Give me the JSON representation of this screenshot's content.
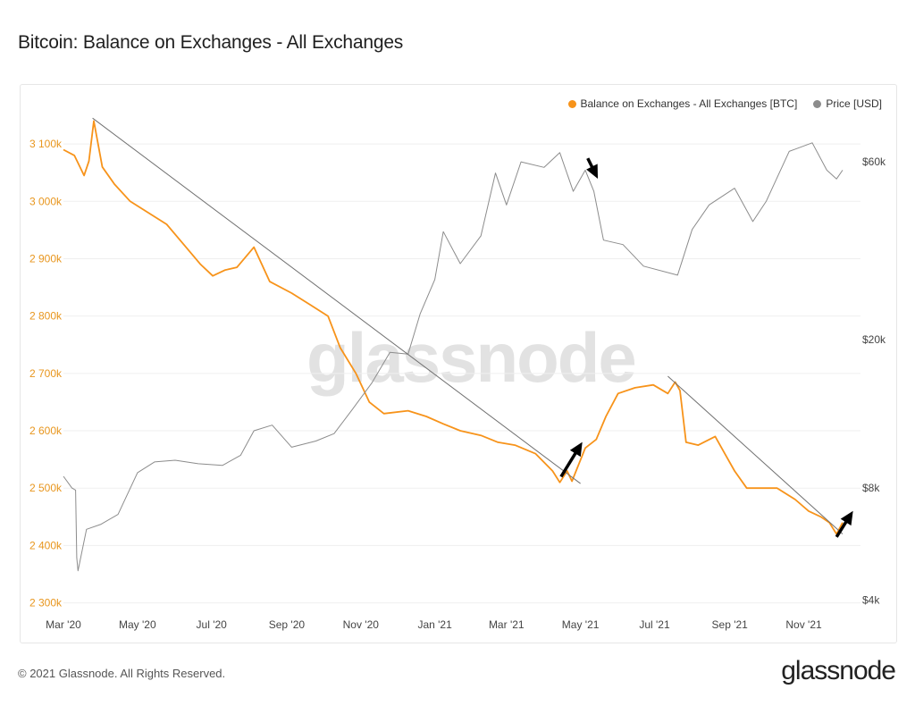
{
  "title": "Bitcoin: Balance on Exchanges - All Exchanges",
  "footer": {
    "copyright": "© 2021 Glassnode. All Rights Reserved.",
    "brand": "glassnode"
  },
  "watermark": "glassnode",
  "colors": {
    "balance": "#f7931a",
    "price": "#8c8c8c",
    "trendline": "#707070",
    "arrow": "#000000"
  },
  "chart_data": {
    "type": "line",
    "title": "Bitcoin: Balance on Exchanges - All Exchanges",
    "legend": {
      "position": "top-right",
      "entries": [
        "Balance on Exchanges - All Exchanges [BTC]",
        "Price [USD]"
      ]
    },
    "x_ticks": [
      "Mar '20",
      "May '20",
      "Jul '20",
      "Sep '20",
      "Nov '20",
      "Jan '21",
      "Mar '21",
      "May '21",
      "Jul '21",
      "Sep '21",
      "Nov '21"
    ],
    "x_range": [
      "2020-03-01",
      "2021-12-03"
    ],
    "left_axis": {
      "ticks": [
        "3 100k",
        "3 000k",
        "2 900k",
        "2 800k",
        "2 700k",
        "2 600k",
        "2 500k",
        "2 400k",
        "2 300k"
      ],
      "range": [
        2290000,
        3150000
      ]
    },
    "right_axis": {
      "scale": "log",
      "ticks": [
        "$60k",
        "$20k",
        "$8k",
        "$4k"
      ],
      "tick_values": [
        60000,
        20000,
        8000,
        4000
      ],
      "range": [
        3800,
        80000
      ]
    },
    "grid": true,
    "series": [
      {
        "name": "Balance on Exchanges - All Exchanges [BTC]",
        "axis": "left",
        "points": [
          [
            "2020-03-01",
            3090000
          ],
          [
            "2020-03-10",
            3080000
          ],
          [
            "2020-03-18",
            3045000
          ],
          [
            "2020-03-22",
            3070000
          ],
          [
            "2020-03-26",
            3140000
          ],
          [
            "2020-04-02",
            3060000
          ],
          [
            "2020-04-12",
            3030000
          ],
          [
            "2020-04-25",
            3000000
          ],
          [
            "2020-05-10",
            2980000
          ],
          [
            "2020-05-25",
            2960000
          ],
          [
            "2020-06-08",
            2925000
          ],
          [
            "2020-06-22",
            2890000
          ],
          [
            "2020-07-02",
            2870000
          ],
          [
            "2020-07-12",
            2880000
          ],
          [
            "2020-07-22",
            2885000
          ],
          [
            "2020-08-05",
            2920000
          ],
          [
            "2020-08-18",
            2860000
          ],
          [
            "2020-09-05",
            2840000
          ],
          [
            "2020-09-20",
            2820000
          ],
          [
            "2020-10-05",
            2800000
          ],
          [
            "2020-10-15",
            2745000
          ],
          [
            "2020-10-28",
            2700000
          ],
          [
            "2020-11-08",
            2650000
          ],
          [
            "2020-11-20",
            2630000
          ],
          [
            "2020-12-10",
            2635000
          ],
          [
            "2020-12-25",
            2625000
          ],
          [
            "2021-01-08",
            2612000
          ],
          [
            "2021-01-22",
            2600000
          ],
          [
            "2021-02-08",
            2592000
          ],
          [
            "2021-02-22",
            2580000
          ],
          [
            "2021-03-08",
            2575000
          ],
          [
            "2021-03-25",
            2560000
          ],
          [
            "2021-04-08",
            2530000
          ],
          [
            "2021-04-14",
            2510000
          ],
          [
            "2021-04-20",
            2530000
          ],
          [
            "2021-04-24",
            2512000
          ],
          [
            "2021-05-05",
            2570000
          ],
          [
            "2021-05-14",
            2585000
          ],
          [
            "2021-05-22",
            2625000
          ],
          [
            "2021-06-01",
            2665000
          ],
          [
            "2021-06-15",
            2675000
          ],
          [
            "2021-06-30",
            2680000
          ],
          [
            "2021-07-12",
            2665000
          ],
          [
            "2021-07-18",
            2685000
          ],
          [
            "2021-07-22",
            2670000
          ],
          [
            "2021-07-27",
            2580000
          ],
          [
            "2021-08-06",
            2575000
          ],
          [
            "2021-08-20",
            2590000
          ],
          [
            "2021-08-28",
            2560000
          ],
          [
            "2021-09-05",
            2530000
          ],
          [
            "2021-09-15",
            2500000
          ],
          [
            "2021-10-10",
            2500000
          ],
          [
            "2021-10-25",
            2480000
          ],
          [
            "2021-11-05",
            2460000
          ],
          [
            "2021-11-15",
            2450000
          ],
          [
            "2021-11-22",
            2440000
          ],
          [
            "2021-11-28",
            2420000
          ],
          [
            "2021-12-03",
            2440000
          ]
        ]
      },
      {
        "name": "Price [USD]",
        "axis": "right",
        "points": [
          [
            "2020-03-01",
            8600
          ],
          [
            "2020-03-08",
            8000
          ],
          [
            "2020-03-11",
            7900
          ],
          [
            "2020-03-12",
            5200
          ],
          [
            "2020-03-13",
            4800
          ],
          [
            "2020-03-20",
            6200
          ],
          [
            "2020-04-01",
            6400
          ],
          [
            "2020-04-15",
            6800
          ],
          [
            "2020-05-01",
            8800
          ],
          [
            "2020-05-15",
            9400
          ],
          [
            "2020-06-01",
            9500
          ],
          [
            "2020-06-20",
            9300
          ],
          [
            "2020-07-10",
            9200
          ],
          [
            "2020-07-25",
            9800
          ],
          [
            "2020-08-05",
            11400
          ],
          [
            "2020-08-20",
            11800
          ],
          [
            "2020-09-05",
            10300
          ],
          [
            "2020-09-25",
            10700
          ],
          [
            "2020-10-10",
            11200
          ],
          [
            "2020-10-25",
            13000
          ],
          [
            "2020-11-10",
            15300
          ],
          [
            "2020-11-25",
            18500
          ],
          [
            "2020-12-10",
            18300
          ],
          [
            "2020-12-20",
            23500
          ],
          [
            "2021-01-01",
            29000
          ],
          [
            "2021-01-08",
            39000
          ],
          [
            "2021-01-22",
            32000
          ],
          [
            "2021-02-08",
            38000
          ],
          [
            "2021-02-20",
            56000
          ],
          [
            "2021-03-01",
            46000
          ],
          [
            "2021-03-13",
            60000
          ],
          [
            "2021-04-01",
            58000
          ],
          [
            "2021-04-14",
            63500
          ],
          [
            "2021-04-25",
            50000
          ],
          [
            "2021-05-05",
            57000
          ],
          [
            "2021-05-12",
            50000
          ],
          [
            "2021-05-20",
            37000
          ],
          [
            "2021-06-05",
            36000
          ],
          [
            "2021-06-22",
            31500
          ],
          [
            "2021-07-20",
            29800
          ],
          [
            "2021-08-01",
            39500
          ],
          [
            "2021-08-15",
            46000
          ],
          [
            "2021-09-05",
            51000
          ],
          [
            "2021-09-20",
            41500
          ],
          [
            "2021-10-01",
            47000
          ],
          [
            "2021-10-20",
            64000
          ],
          [
            "2021-11-08",
            67500
          ],
          [
            "2021-11-20",
            57000
          ],
          [
            "2021-11-28",
            54000
          ],
          [
            "2021-12-03",
            57000
          ]
        ]
      }
    ],
    "annotations": {
      "trendlines": [
        {
          "from": [
            "2020-03-25",
            3145000
          ],
          "to": [
            "2021-05-01",
            2508000
          ]
        },
        {
          "from": [
            "2021-07-12",
            2695000
          ],
          "to": [
            "2021-12-03",
            2420000
          ]
        }
      ],
      "arrows": [
        {
          "direction": "down",
          "at": [
            "2021-05-07",
            3075000
          ],
          "to": [
            "2021-05-14",
            3045000
          ]
        },
        {
          "direction": "up",
          "at": [
            "2021-04-15",
            2520000
          ],
          "to": [
            "2021-05-01",
            2575000
          ]
        },
        {
          "direction": "up",
          "at": [
            "2021-11-28",
            2415000
          ],
          "to": [
            "2021-12-10",
            2455000
          ]
        }
      ]
    }
  }
}
